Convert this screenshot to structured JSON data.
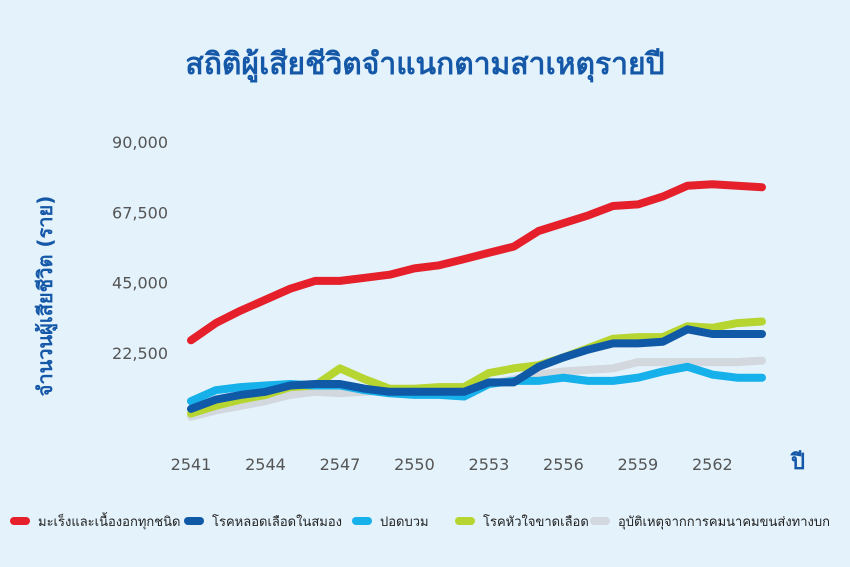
{
  "chart_data": {
    "type": "line",
    "title": "สถิติผู้เสียชีวิตจำแนกตามสาเหตุรายปี",
    "xlabel": "ปี",
    "ylabel": "จำนวนผู้เสียชีวิต (ราย)",
    "x": [
      2541,
      2542,
      2543,
      2544,
      2545,
      2546,
      2547,
      2548,
      2549,
      2550,
      2551,
      2552,
      2553,
      2554,
      2555,
      2556,
      2557,
      2558,
      2559,
      2560,
      2561,
      2562,
      2563,
      2564
    ],
    "x_ticks": [
      "2541",
      "2544",
      "2547",
      "2550",
      "2553",
      "2556",
      "2559",
      "2562"
    ],
    "y_ticks": [
      "22,500",
      "45,000",
      "67,500",
      "90,000"
    ],
    "y_tick_values": [
      22500,
      45000,
      67500,
      90000
    ],
    "ylim": [
      0,
      93000
    ],
    "grid": false,
    "legend_position": "bottom",
    "series": [
      {
        "name": "มะเร็งและเนื้องอกทุกชนิด",
        "color": "#e5202a",
        "values": [
          26500,
          32000,
          36000,
          39500,
          43000,
          45500,
          45500,
          46500,
          47500,
          49500,
          50500,
          52500,
          54500,
          56500,
          61500,
          64000,
          66500,
          69500,
          70000,
          72500,
          76000,
          76500,
          76000,
          75500
        ]
      },
      {
        "name": "โรคหลอดเลือดในสมอง",
        "color": "#1059a6",
        "values": [
          4500,
          7500,
          9000,
          10000,
          12000,
          12500,
          12500,
          11000,
          10000,
          10000,
          10000,
          10000,
          13000,
          13000,
          18000,
          21000,
          23500,
          25500,
          25500,
          26000,
          30000,
          28500,
          28500,
          28500
        ]
      },
      {
        "name": "ปอดบวม",
        "color": "#16b0ea",
        "values": [
          7000,
          10500,
          11500,
          12000,
          12500,
          12000,
          12000,
          10500,
          9500,
          9000,
          9000,
          8500,
          12500,
          13500,
          13500,
          14500,
          13500,
          13500,
          14500,
          16500,
          18000,
          15500,
          14500,
          14500
        ]
      },
      {
        "name": "โรคหัวใจขาดเลือด",
        "color": "#b6d530",
        "values": [
          3000,
          5500,
          7500,
          9000,
          11500,
          12000,
          17500,
          14000,
          11000,
          11000,
          11500,
          11500,
          16000,
          17500,
          18500,
          21000,
          24000,
          27000,
          27500,
          27500,
          31000,
          30500,
          32000,
          32500
        ]
      },
      {
        "name": "อุบัติเหตุจากการคมนาคมขนส่งทางบก",
        "color": "#d2d8dd",
        "values": [
          2000,
          4000,
          5500,
          7000,
          9000,
          10000,
          9500,
          10000,
          10500,
          11000,
          11500,
          11500,
          12500,
          14000,
          15500,
          16500,
          17000,
          17500,
          19500,
          19500,
          19500,
          19500,
          19500,
          20000
        ]
      }
    ]
  }
}
